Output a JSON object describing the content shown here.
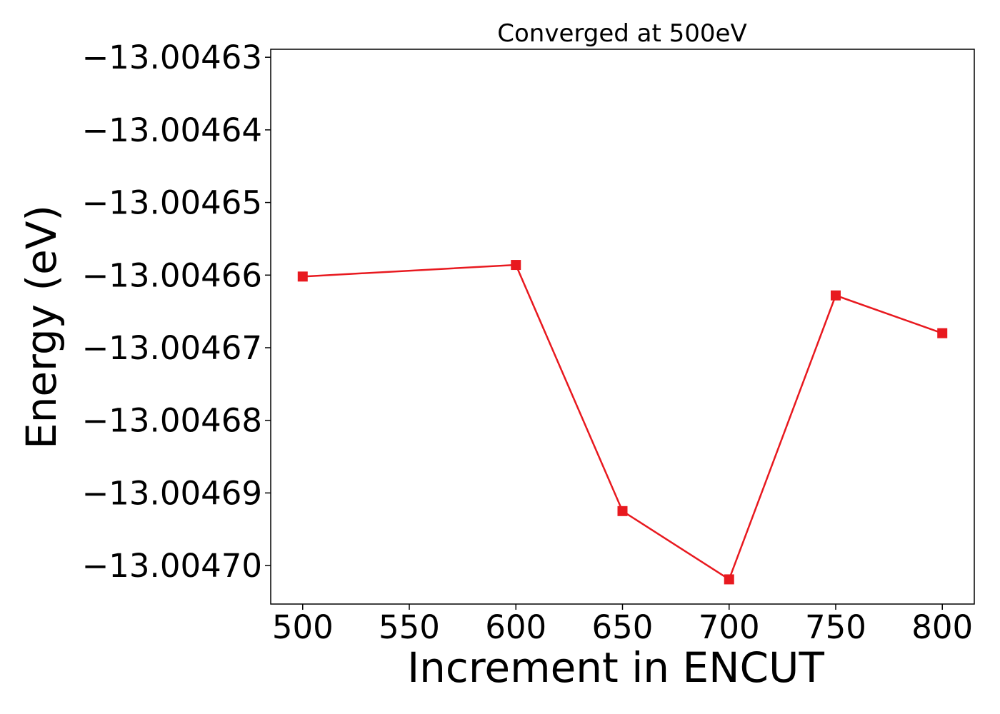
{
  "chart_data": {
    "type": "line",
    "title": "Converged at 500eV",
    "xlabel": "Increment in ENCUT",
    "ylabel": "Energy (eV)",
    "x": [
      500,
      600,
      650,
      700,
      750,
      800
    ],
    "series": [
      {
        "values": [
          -13.0046602,
          -13.0046586,
          -13.0046925,
          -13.0047019,
          -13.0046628,
          -13.004668
        ],
        "color": "#e8191f",
        "marker": "square"
      }
    ],
    "xticks": [
      500,
      550,
      600,
      650,
      700,
      750,
      800
    ],
    "xtick_labels": [
      "500",
      "550",
      "600",
      "650",
      "700",
      "750",
      "800"
    ],
    "yticks": [
      -13.00463,
      -13.00464,
      -13.00465,
      -13.00466,
      -13.00467,
      -13.00468,
      -13.00469,
      -13.0047
    ],
    "ytick_labels": [
      "−13.00463",
      "−13.00464",
      "−13.00465",
      "−13.00466",
      "−13.00467",
      "−13.00468",
      "−13.00469",
      "−13.00470"
    ],
    "xlim": [
      485,
      815
    ],
    "ylim": [
      -13.0047053,
      -13.0046289
    ],
    "grid": false,
    "legend": false
  }
}
